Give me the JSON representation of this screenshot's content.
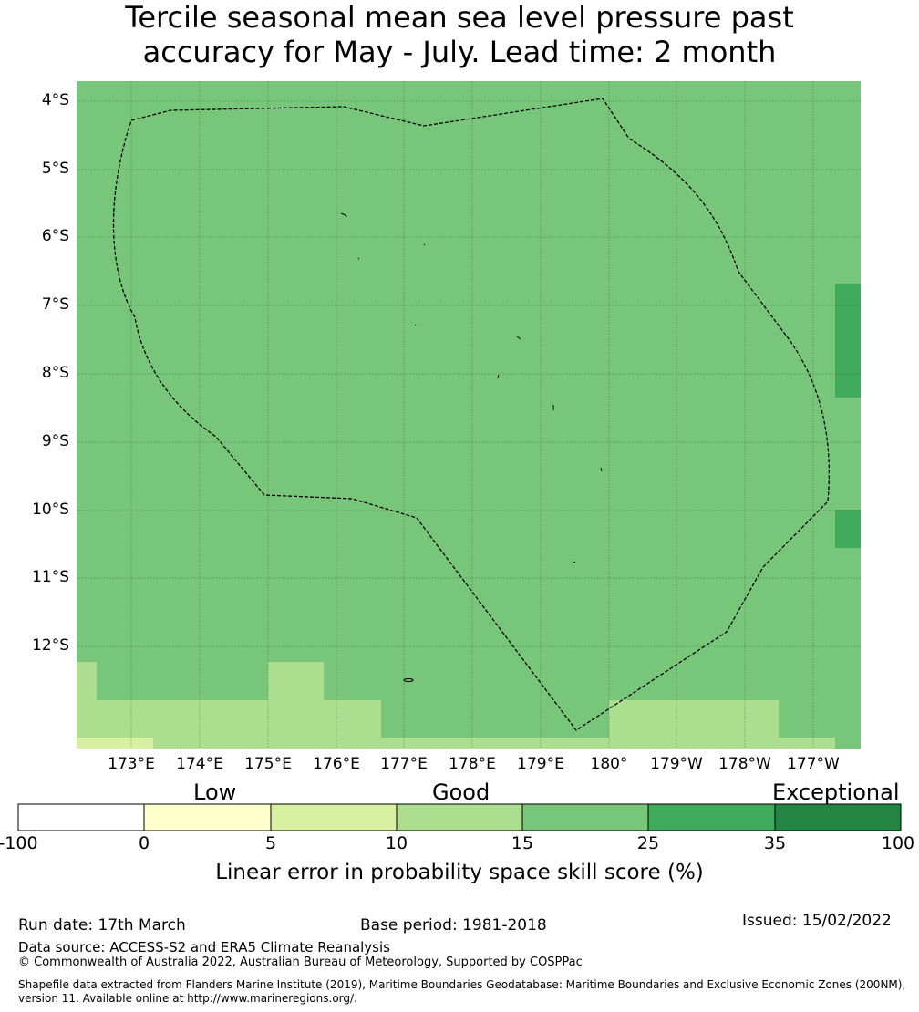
{
  "title": {
    "line1": "Tercile seasonal mean sea level pressure past",
    "line2": "accuracy for May - July. Lead time: 2 month"
  },
  "map": {
    "lat_labels": [
      "4°S",
      "5°S",
      "6°S",
      "7°S",
      "8°S",
      "9°S",
      "10°S",
      "11°S",
      "12°S"
    ],
    "lon_labels": [
      "173°E",
      "174°E",
      "175°E",
      "176°E",
      "177°E",
      "178°E",
      "179°E",
      "180°",
      "179°W",
      "178°W",
      "177°W"
    ]
  },
  "legend": {
    "categories": [
      "Low",
      "Good",
      "Exceptional"
    ],
    "bins": [
      {
        "from": -100,
        "to": 0,
        "color": "#ffffff"
      },
      {
        "from": 0,
        "to": 5,
        "color": "#ffffcc"
      },
      {
        "from": 5,
        "to": 10,
        "color": "#d9f0a3"
      },
      {
        "from": 10,
        "to": 15,
        "color": "#addd8e"
      },
      {
        "from": 15,
        "to": 25,
        "color": "#78c679"
      },
      {
        "from": 25,
        "to": 35,
        "color": "#41ab5d"
      },
      {
        "from": 35,
        "to": 100,
        "color": "#238443"
      }
    ],
    "ticks": [
      "-100",
      "0",
      "5",
      "10",
      "15",
      "25",
      "35",
      "100"
    ],
    "axis_label": "Linear error in probability space skill score (%)"
  },
  "footer": {
    "run_date": "Run date: 17th March",
    "base_period": "Base period: 1981-2018",
    "issued": "Issued: 15/02/2022",
    "data_source": "Data source: ACCESS-S2 and ERA5 Climate Reanalysis",
    "copyright": "© Commonwealth of Australia 2022, Australian Bureau of Meteorology, Supported by COSPPac",
    "shapefile": "Shapefile data extracted from Flanders Marine Institute (2019), Maritime Boundaries Geodatabase: Maritime Boundaries and Exclusive Economic Zones (200NM), version 11. Available online at http://www.marineregions.org/."
  }
}
